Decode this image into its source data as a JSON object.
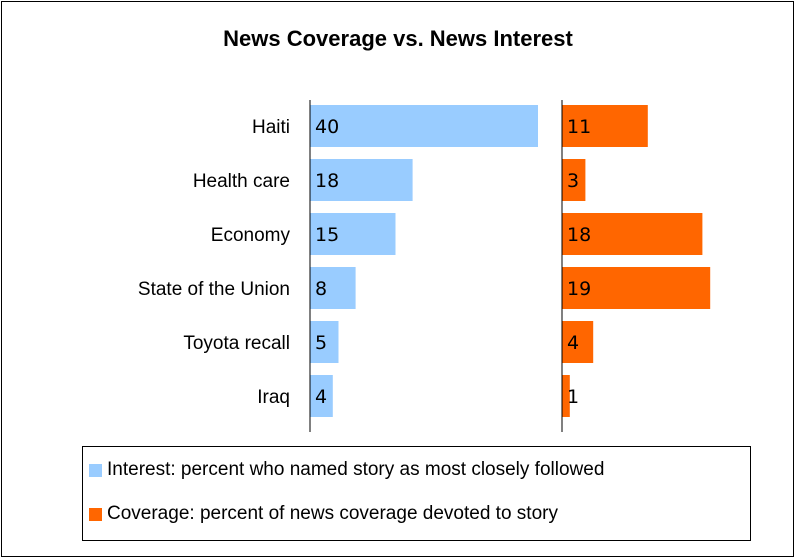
{
  "chart_data": {
    "type": "bar",
    "title": "News Coverage vs. News Interest",
    "categories": [
      "Haiti",
      "Health care",
      "Economy",
      "State of the Union",
      "Toyota recall",
      "Iraq"
    ],
    "series": [
      {
        "name": "Interest: percent who named story as most closely followed",
        "values": [
          40,
          18,
          15,
          8,
          5,
          4
        ],
        "color": "#99CCFF"
      },
      {
        "name": "Coverage: percent of news coverage devoted to story",
        "values": [
          11,
          3,
          18,
          19,
          4,
          1
        ],
        "color": "#FF6600"
      }
    ],
    "orientation": "horizontal",
    "legend_position": "bottom",
    "grid": false
  }
}
